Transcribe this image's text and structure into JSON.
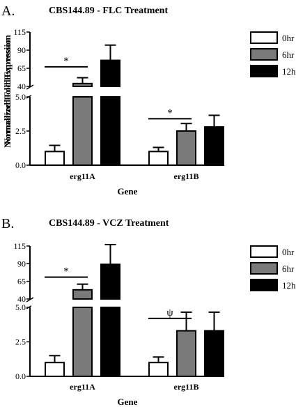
{
  "panels": [
    {
      "letter": "A.",
      "title": "CBS144.89 -  FLC  Treatment"
    },
    {
      "letter": "B.",
      "title": "CBS144.89 -  VCZ  Treatment"
    }
  ],
  "chart_data": [
    {
      "type": "bar",
      "title": "CBS144.89 -  FLC  Treatment",
      "xlabel": "Gene",
      "ylabel": "Normalized  Fold  Expression",
      "categories": [
        "erg11A",
        "erg11B"
      ],
      "axis_break": true,
      "lower_ylim": [
        0,
        5
      ],
      "lower_yticks": [
        "0.0",
        "2.5",
        "5.0"
      ],
      "upper_ylim": [
        40,
        115
      ],
      "upper_yticks": [
        "40",
        "65",
        "90",
        "115"
      ],
      "legend_position": "top-right",
      "series": [
        {
          "name": "0hr",
          "color": "#ffffff",
          "values": [
            1.0,
            1.0
          ],
          "errors": [
            0.45,
            0.3
          ]
        },
        {
          "name": "6hr",
          "color": "#7a7a7a",
          "values": [
            44,
            2.5
          ],
          "errors": [
            8,
            0.55
          ]
        },
        {
          "name": "12hr",
          "color": "#000000",
          "values": [
            76,
            2.8
          ],
          "errors": [
            21,
            0.85
          ]
        }
      ],
      "annotations": [
        {
          "text": "*",
          "category": "erg11A",
          "axis": "upper",
          "y": 67
        },
        {
          "text": "*",
          "category": "erg11B",
          "axis": "lower",
          "y": 3.4
        }
      ]
    },
    {
      "type": "bar",
      "title": "CBS144.89 -  VCZ  Treatment",
      "xlabel": "Gene",
      "ylabel": "Normalized  Fold  Expression",
      "categories": [
        "erg11A",
        "erg11B"
      ],
      "axis_break": true,
      "lower_ylim": [
        0,
        5
      ],
      "lower_yticks": [
        "0.0",
        "2.5",
        "5.0"
      ],
      "upper_ylim": [
        40,
        115
      ],
      "upper_yticks": [
        "40",
        "65",
        "90",
        "115"
      ],
      "legend_position": "top-right",
      "series": [
        {
          "name": "0hr",
          "color": "#ffffff",
          "values": [
            1.0,
            1.0
          ],
          "errors": [
            0.5,
            0.4
          ]
        },
        {
          "name": "6hr",
          "color": "#7a7a7a",
          "values": [
            53,
            3.3
          ],
          "errors": [
            8,
            1.35
          ]
        },
        {
          "name": "12hr",
          "color": "#000000",
          "values": [
            89,
            3.3
          ],
          "errors": [
            28,
            1.35
          ]
        }
      ],
      "annotations": [
        {
          "text": "*",
          "category": "erg11A",
          "axis": "upper",
          "y": 71
        },
        {
          "text": "ψ",
          "category": "erg11B",
          "axis": "lower",
          "y": 4.2
        }
      ]
    }
  ]
}
